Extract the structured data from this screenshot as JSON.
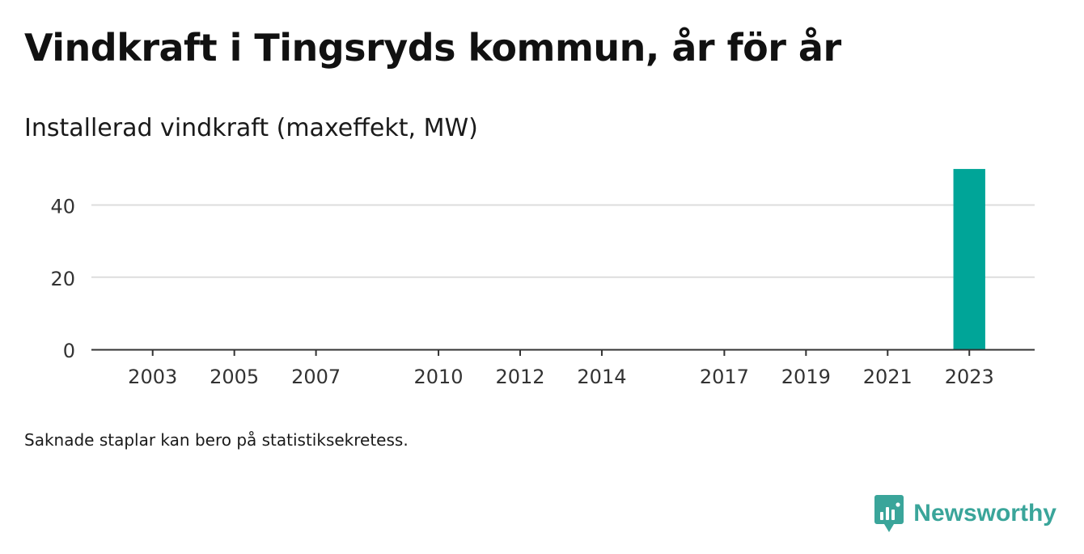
{
  "title": "Vindkraft i Tingsryds kommun, år för år",
  "subtitle": "Installerad vindkraft (maxeffekt, MW)",
  "note": "Saknade staplar kan bero på statistiksekretess.",
  "brand": {
    "name": "Newsworthy",
    "color": "#3aa59a",
    "icon": "newsworthy-chart-bubble-icon"
  },
  "chart_data": {
    "type": "bar",
    "title": "Installerad vindkraft (maxeffekt, MW)",
    "xlabel": "",
    "ylabel": "",
    "x_range": [
      2001.5,
      2024.6
    ],
    "ylim": [
      0,
      52
    ],
    "yticks": [
      0,
      20,
      40
    ],
    "xticks": [
      "2003",
      "2005",
      "2007",
      "2010",
      "2012",
      "2014",
      "2017",
      "2019",
      "2021",
      "2023"
    ],
    "grid": true,
    "legend": "none",
    "bar_color": "#00a598",
    "points": [
      {
        "x": 2023,
        "value": 50
      }
    ]
  }
}
